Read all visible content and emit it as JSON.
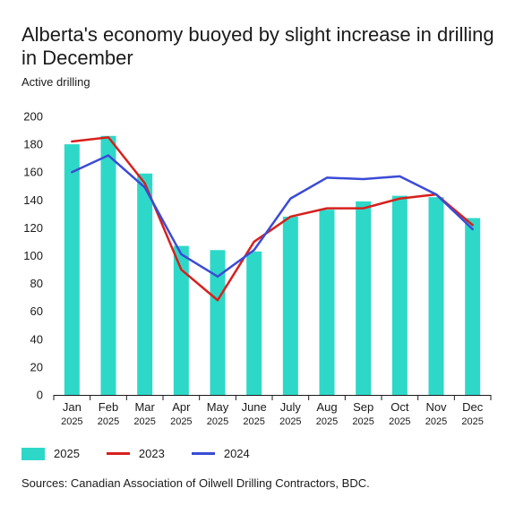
{
  "header": {
    "title": "Alberta's economy buoyed by slight increase in drilling in December",
    "subtitle": "Active drilling"
  },
  "footer": {
    "source": "Sources: Canadian Association of Oilwell Drilling Contractors, BDC."
  },
  "legend": [
    {
      "label": "2025",
      "kind": "bar",
      "color": "#2ed8c8"
    },
    {
      "label": "2023",
      "kind": "line",
      "color": "#d8201c"
    },
    {
      "label": "2024",
      "kind": "line",
      "color": "#3b4bd6"
    }
  ],
  "chart_data": {
    "type": "bar",
    "categories": [
      "Jan",
      "Feb",
      "Mar",
      "Apr",
      "May",
      "June",
      "July",
      "Aug",
      "Sep",
      "Oct",
      "Nov",
      "Dec"
    ],
    "category_sublabels": [
      "2025",
      "2025",
      "2025",
      "2025",
      "2025",
      "2025",
      "2025",
      "2025",
      "2025",
      "2025",
      "2025",
      "2025"
    ],
    "ylim": [
      0,
      200
    ],
    "yticks": [
      0,
      20,
      40,
      60,
      80,
      100,
      120,
      140,
      160,
      180,
      200
    ],
    "grid": false,
    "legend_position": "bottom",
    "series": [
      {
        "name": "2025",
        "type": "bar",
        "color": "#2ed8c8",
        "values": [
          180,
          186,
          159,
          107,
          104,
          103,
          128,
          133,
          139,
          143,
          142,
          127
        ]
      },
      {
        "name": "2023",
        "type": "line",
        "color": "#d8201c",
        "values": [
          182,
          185,
          152,
          90,
          68,
          110,
          128,
          134,
          134,
          141,
          144,
          122
        ]
      },
      {
        "name": "2024",
        "type": "line",
        "color": "#3b4bd6",
        "values": [
          160,
          172,
          149,
          101,
          85,
          104,
          141,
          156,
          155,
          157,
          144,
          119
        ]
      }
    ]
  }
}
